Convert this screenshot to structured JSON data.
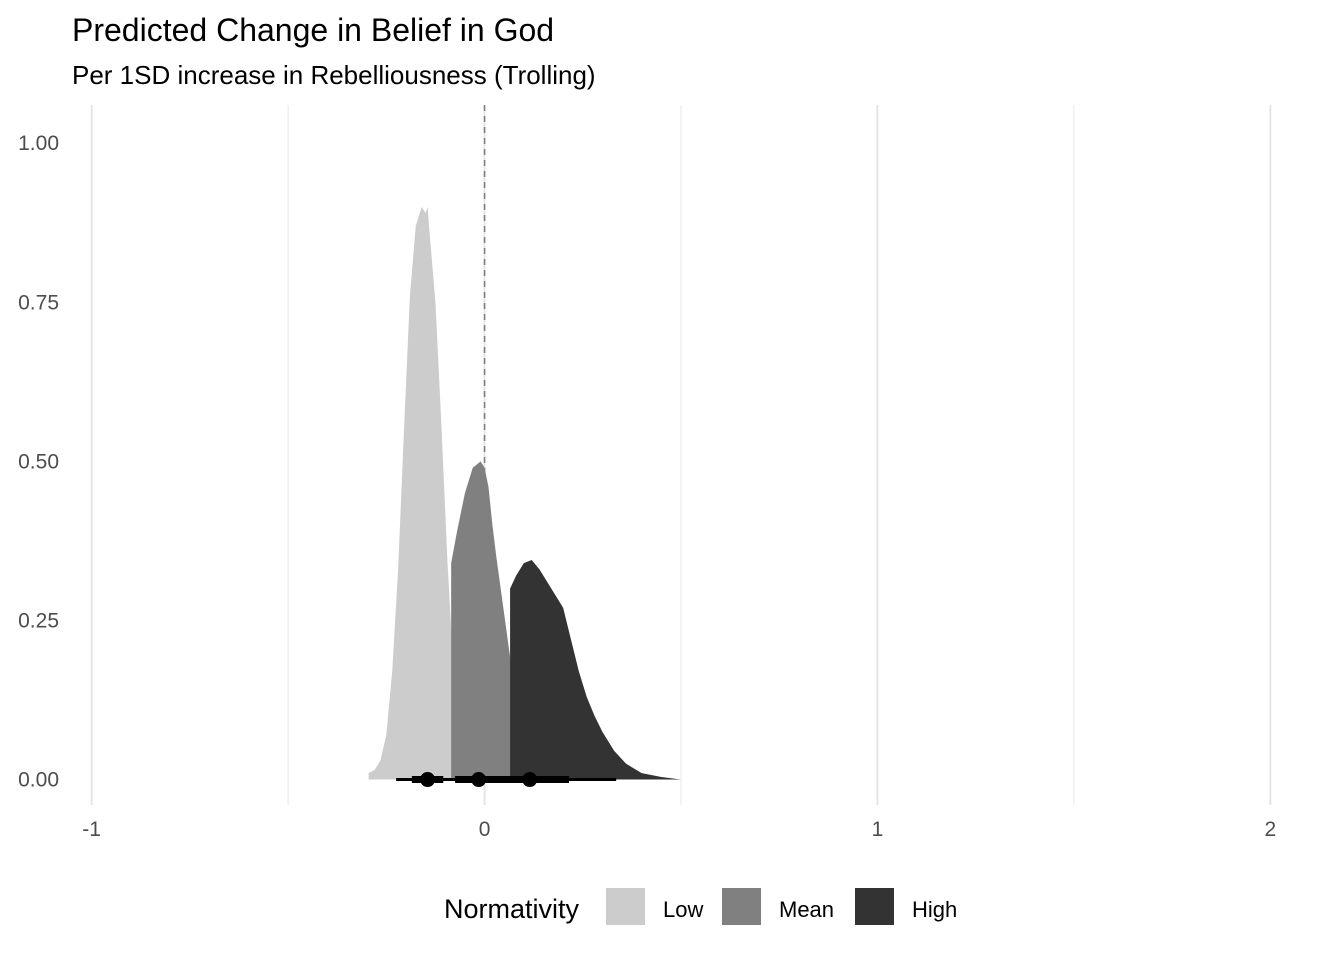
{
  "chart_data": {
    "type": "area",
    "title": "Predicted Change in Belief in God",
    "subtitle": "Per 1SD increase in Rebelliousness (Trolling)",
    "xlabel": "",
    "ylabel": "",
    "xlim": [
      -1.05,
      2.05
    ],
    "ylim": [
      -0.04,
      1.06
    ],
    "x_ticks": [
      -1,
      0,
      1,
      2
    ],
    "x_tick_labels": [
      "-1",
      "0",
      "1",
      "2"
    ],
    "y_ticks": [
      0,
      0.25,
      0.5,
      0.75,
      1
    ],
    "y_tick_labels": [
      "0.00",
      "0.25",
      "0.50",
      "0.75",
      "1.00"
    ],
    "x_minor_gridlines": [
      -0.5,
      0.5,
      1.5
    ],
    "reference_line": {
      "x": 0,
      "style": "dashed",
      "color": "#7f7f7f"
    },
    "grid": "vertical only",
    "legend": {
      "title": "Normativity",
      "position": "bottom"
    },
    "series": [
      {
        "name": "Low",
        "color": "#cccccc",
        "x": [
          -0.295,
          -0.28,
          -0.265,
          -0.25,
          -0.235,
          -0.22,
          -0.205,
          -0.19,
          -0.175,
          -0.16,
          -0.15,
          -0.145,
          -0.14,
          -0.125,
          -0.11,
          -0.095,
          -0.08,
          -0.065,
          -0.05,
          -0.035,
          -0.02
        ],
        "density": [
          0.01,
          0.015,
          0.03,
          0.07,
          0.17,
          0.33,
          0.55,
          0.76,
          0.87,
          0.9,
          0.89,
          0.9,
          0.86,
          0.75,
          0.56,
          0.35,
          0.18,
          0.08,
          0.03,
          0.01,
          0
        ],
        "point_estimate": -0.145,
        "interval_66": [
          -0.185,
          -0.105
        ],
        "interval_95": [
          -0.225,
          -0.065
        ]
      },
      {
        "name": "Mean",
        "color": "#808080",
        "x": [
          -0.085,
          -0.07,
          -0.05,
          -0.03,
          -0.01,
          0.0,
          0.01,
          0.02,
          0.03,
          0.05,
          0.07,
          0.09,
          0.11,
          0.13,
          0.15
        ],
        "density": [
          0.34,
          0.39,
          0.45,
          0.49,
          0.5,
          0.49,
          0.46,
          0.4,
          0.35,
          0.26,
          0.17,
          0.09,
          0.04,
          0.01,
          0
        ],
        "point_estimate": -0.015,
        "interval_66": [
          -0.075,
          0.045
        ],
        "interval_95": [
          -0.135,
          0.105
        ]
      },
      {
        "name": "High",
        "color": "#333333",
        "x": [
          0.065,
          0.08,
          0.1,
          0.12,
          0.14,
          0.16,
          0.18,
          0.2,
          0.22,
          0.24,
          0.26,
          0.28,
          0.3,
          0.33,
          0.36,
          0.4,
          0.45,
          0.5
        ],
        "density": [
          0.3,
          0.32,
          0.34,
          0.345,
          0.33,
          0.31,
          0.29,
          0.27,
          0.22,
          0.17,
          0.13,
          0.1,
          0.075,
          0.045,
          0.025,
          0.01,
          0.004,
          0
        ],
        "point_estimate": 0.115,
        "interval_66": [
          0.035,
          0.215
        ],
        "interval_95": [
          -0.045,
          0.335
        ]
      }
    ]
  }
}
